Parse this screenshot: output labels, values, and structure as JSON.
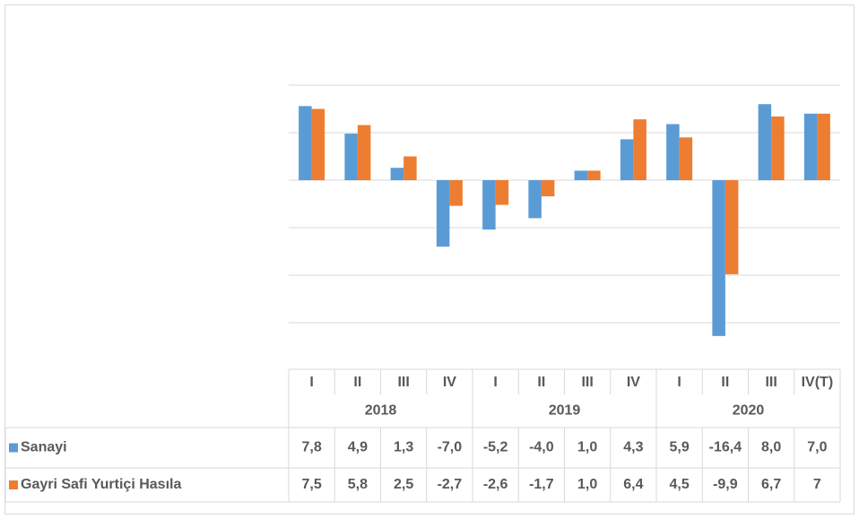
{
  "chart_data": {
    "type": "bar",
    "categories": [
      "I",
      "II",
      "III",
      "IV",
      "I",
      "II",
      "III",
      "IV",
      "I",
      "II",
      "III",
      "IV(T)"
    ],
    "years": [
      "2018",
      "2019",
      "2020"
    ],
    "series": [
      {
        "name": "Sanayi",
        "color": "#5b9bd5",
        "values": [
          7.8,
          4.9,
          1.3,
          -7.0,
          -5.2,
          -4.0,
          1.0,
          4.3,
          5.9,
          -16.4,
          8.0,
          7.0
        ],
        "value_labels": [
          "7,8",
          "4,9",
          "1,3",
          "-7,0",
          "-5,2",
          "-4,0",
          "1,0",
          "4,3",
          "5,9",
          "-16,4",
          "8,0",
          "7,0"
        ]
      },
      {
        "name": "Gayri Safi Yurtiçi Hasıla",
        "color": "#ed7d31",
        "values": [
          7.5,
          5.8,
          2.5,
          -2.7,
          -2.6,
          -1.7,
          1.0,
          6.4,
          4.5,
          -9.9,
          6.7,
          7
        ],
        "value_labels": [
          "7,5",
          "5,8",
          "2,5",
          "-2,7",
          "-2,6",
          "-1,7",
          "1,0",
          "6,4",
          "4,5",
          "-9,9",
          "6,7",
          "7"
        ]
      }
    ],
    "ylim": [
      -20,
      10
    ],
    "yticks": [
      -15,
      -10,
      -5,
      0,
      5,
      10
    ],
    "grid": true
  }
}
